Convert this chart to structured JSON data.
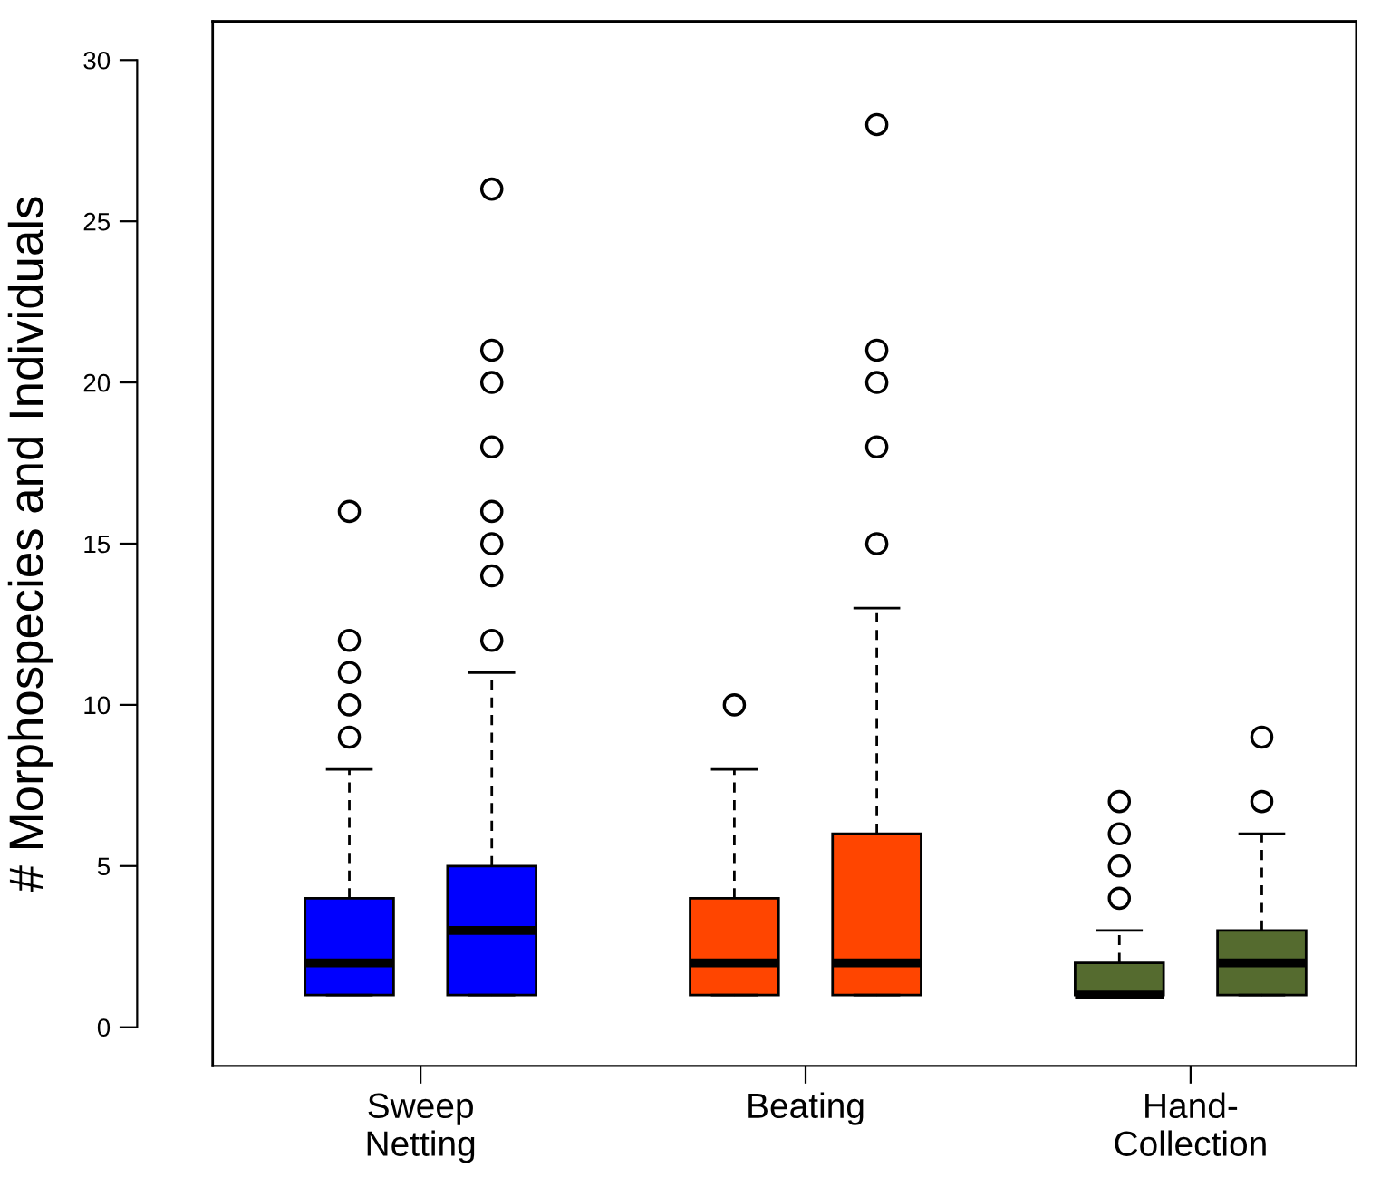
{
  "chart_data": {
    "type": "box",
    "ylabel": "# Morphospecies and Individuals",
    "categories": [
      "Sweep\nNetting",
      "Beating",
      "Hand-\nCollection"
    ],
    "series": [
      {
        "colors": [
          "#0000ff",
          "#ff4500",
          "#556b2f"
        ],
        "boxes": [
          {
            "low": 1,
            "q1": 1,
            "median": 2,
            "q3": 4,
            "high": 8,
            "outliers": [
              9,
              10,
              11,
              12,
              16
            ]
          },
          {
            "low": 1,
            "q1": 1,
            "median": 2,
            "q3": 4,
            "high": 8,
            "outliers": [
              10
            ]
          },
          {
            "low": 1,
            "q1": 1,
            "median": 1,
            "q3": 2,
            "high": 3,
            "outliers": [
              4,
              5,
              6,
              7
            ]
          }
        ]
      },
      {
        "colors": [
          "#0000ff",
          "#ff4500",
          "#556b2f"
        ],
        "boxes": [
          {
            "low": 1,
            "q1": 1,
            "median": 3,
            "q3": 5,
            "high": 11,
            "outliers": [
              12,
              14,
              15,
              16,
              18,
              20,
              21,
              26
            ]
          },
          {
            "low": 1,
            "q1": 1,
            "median": 2,
            "q3": 6,
            "high": 13,
            "outliers": [
              15,
              18,
              20,
              21,
              28
            ]
          },
          {
            "low": 1,
            "q1": 1,
            "median": 2,
            "q3": 3,
            "high": 6,
            "outliers": [
              7,
              9
            ]
          }
        ]
      }
    ],
    "ylim": [
      -1.2,
      31.2
    ],
    "yticks": [
      0,
      5,
      10,
      15,
      20,
      25,
      30
    ],
    "grid": false,
    "legend": false,
    "marker": "circle"
  }
}
